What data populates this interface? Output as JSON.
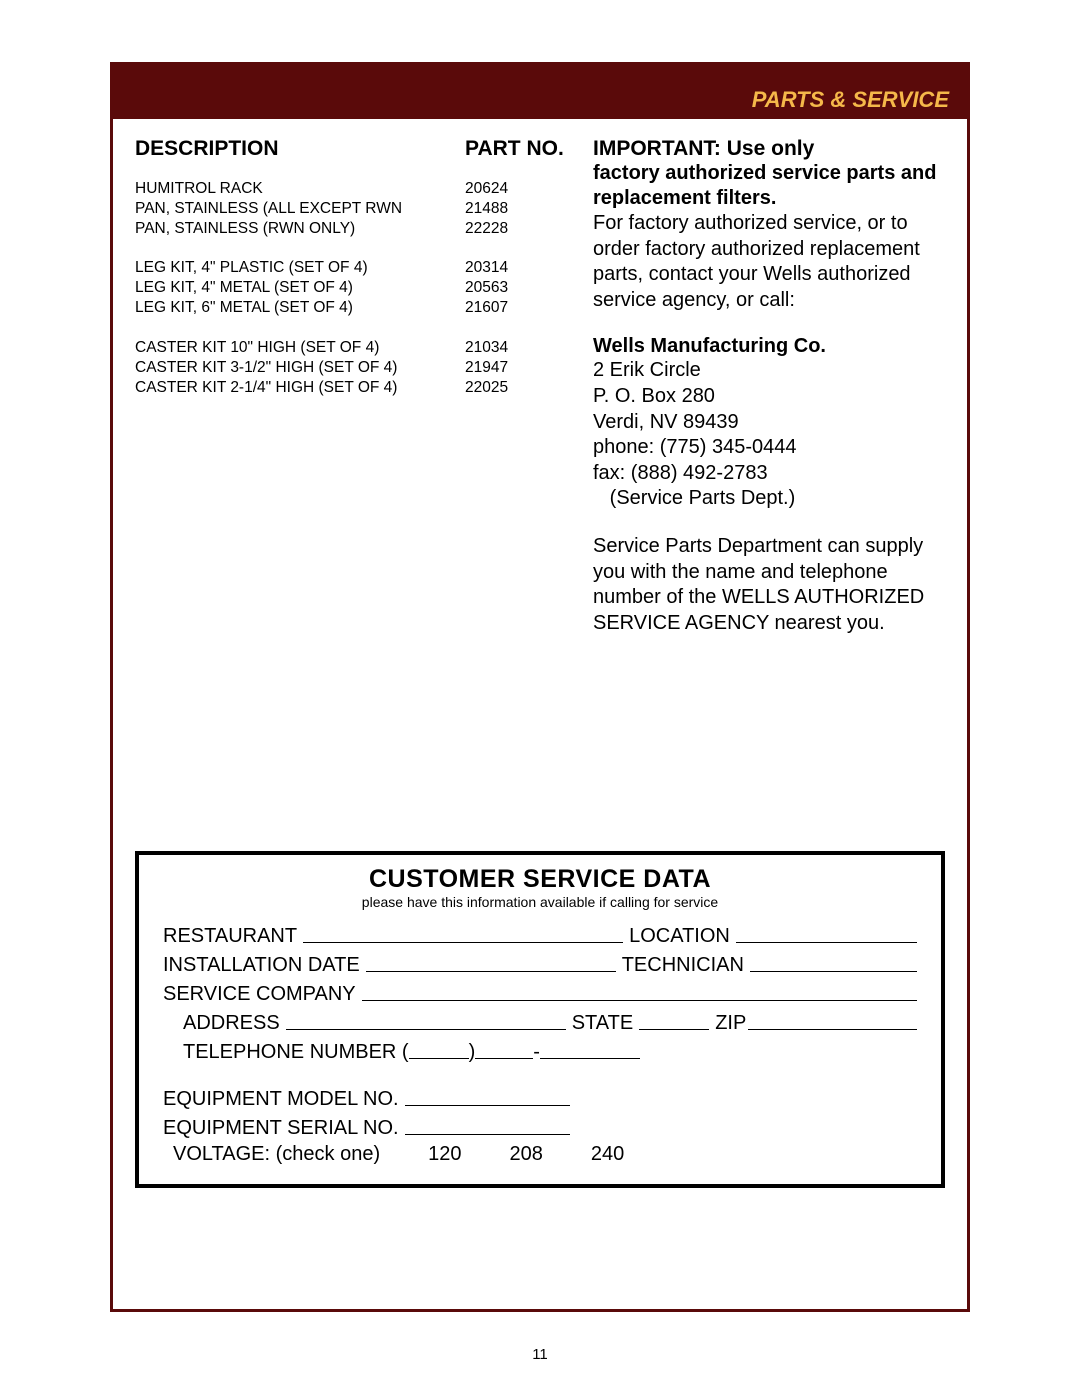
{
  "header": {
    "title": "PARTS & SERVICE"
  },
  "columns": {
    "desc": "DESCRIPTION",
    "part": "PART NO."
  },
  "parts_groups": [
    [
      {
        "desc": "HUMITROL RACK",
        "pn": "20624"
      },
      {
        "desc": "PAN, STAINLESS (ALL EXCEPT RWN",
        "pn": "21488"
      },
      {
        "desc": "PAN, STAINLESS (RWN ONLY)",
        "pn": "22228"
      }
    ],
    [
      {
        "desc": "LEG KIT, 4\" PLASTIC (SET OF 4)",
        "pn": "20314"
      },
      {
        "desc": "LEG KIT, 4\" METAL (SET OF 4)",
        "pn": "20563"
      },
      {
        "desc": "LEG KIT, 6\" METAL (SET OF 4)",
        "pn": "21607"
      }
    ],
    [
      {
        "desc": "CASTER KIT 10\" HIGH (SET OF 4)",
        "pn": "21034"
      },
      {
        "desc": "CASTER KIT 3-1/2\" HIGH (SET OF 4)",
        "pn": "21947"
      },
      {
        "desc": "CASTER KIT 2-1/4\" HIGH (SET OF 4)",
        "pn": "22025"
      }
    ]
  ],
  "notice": {
    "heading": "IMPORTANT:  Use only",
    "sub": "factory authorized service parts and replacement filters.",
    "body": "For factory authorized service, or to order factory authorized replacement parts, contact your Wells authorized service agency, or call:"
  },
  "mfg": {
    "name": "Wells Manufacturing Co.",
    "addr1": "2 Erik Circle",
    "addr2": "P. O. Box 280",
    "addr3": "Verdi, NV  89439",
    "phone": "phone:  (775) 345-0444",
    "fax": "fax:       (888) 492-2783",
    "dept": "   (Service Parts Dept.)"
  },
  "svc_note": "Service Parts Department can supply you with the name and telephone number of the WELLS AUTHORIZED SERVICE AGENCY nearest you.",
  "svc_box": {
    "title": "CUSTOMER SERVICE DATA",
    "subtitle": "please have this information available if calling for service",
    "labels": {
      "restaurant": "RESTAURANT",
      "location": "LOCATION",
      "install_date": "INSTALLATION DATE",
      "technician": "TECHNICIAN",
      "service_co": "SERVICE COMPANY",
      "address": "ADDRESS",
      "state": "STATE",
      "zip": "ZIP",
      "telephone": "TELEPHONE NUMBER (",
      "model": "EQUIPMENT MODEL NO.",
      "serial": "EQUIPMENT SERIAL NO.",
      "voltage": "VOLTAGE: (check one)"
    },
    "voltages": [
      "120",
      "208",
      "240"
    ]
  },
  "page_number": "11",
  "colors": {
    "frame": "#5a0a0a",
    "header_bg": "#5a0a0a",
    "header_text": "#f5b84a",
    "text": "#000000",
    "page_bg": "#ffffff"
  }
}
